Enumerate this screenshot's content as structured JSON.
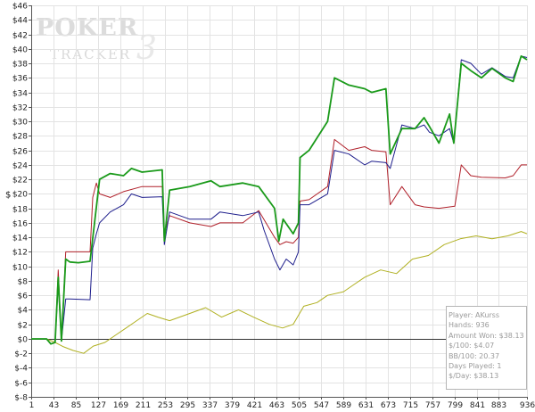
{
  "chart_data": {
    "type": "line",
    "title": "",
    "xlabel": "",
    "ylabel": "$",
    "xlim": [
      1,
      936
    ],
    "ylim": [
      -8,
      46
    ],
    "x_ticks": [
      1,
      43,
      85,
      127,
      169,
      211,
      253,
      295,
      337,
      379,
      421,
      463,
      505,
      547,
      589,
      631,
      673,
      715,
      757,
      799,
      841,
      883,
      936
    ],
    "y_ticks": [
      -8,
      -6,
      -4,
      -2,
      0,
      2,
      4,
      6,
      8,
      10,
      12,
      14,
      16,
      18,
      20,
      22,
      24,
      26,
      28,
      30,
      32,
      34,
      36,
      38,
      40,
      42,
      44,
      46
    ],
    "y_tick_labels": [
      "$-8",
      "$-6",
      "$-4",
      "$-2",
      "$0",
      "$2",
      "$4",
      "$6",
      "$8",
      "$10",
      "$12",
      "$14",
      "$16",
      "$18",
      "$20",
      "$22",
      "$24",
      "$26",
      "$28",
      "$30",
      "$32",
      "$34",
      "$36",
      "$38",
      "$40",
      "$42",
      "$44",
      "$46"
    ],
    "grid": true,
    "series": [
      {
        "name": "",
        "color": "#1a9a1a",
        "points": [
          [
            1,
            0
          ],
          [
            30,
            0
          ],
          [
            38,
            -0.7
          ],
          [
            46,
            -0.5
          ],
          [
            52,
            8.5
          ],
          [
            58,
            -0.3
          ],
          [
            66,
            11
          ],
          [
            74,
            10.6
          ],
          [
            90,
            10.5
          ],
          [
            112,
            10.7
          ],
          [
            130,
            22
          ],
          [
            150,
            22.8
          ],
          [
            175,
            22.5
          ],
          [
            190,
            23.5
          ],
          [
            210,
            23
          ],
          [
            248,
            23.3
          ],
          [
            252,
            13.5
          ],
          [
            262,
            20.5
          ],
          [
            300,
            21
          ],
          [
            340,
            21.8
          ],
          [
            357,
            21
          ],
          [
            400,
            21.5
          ],
          [
            430,
            21
          ],
          [
            460,
            18
          ],
          [
            468,
            13.5
          ],
          [
            476,
            16.5
          ],
          [
            495,
            14.5
          ],
          [
            505,
            16
          ],
          [
            508,
            25
          ],
          [
            525,
            26
          ],
          [
            560,
            30
          ],
          [
            573,
            36
          ],
          [
            600,
            35
          ],
          [
            630,
            34.5
          ],
          [
            643,
            34
          ],
          [
            670,
            34.5
          ],
          [
            678,
            25.5
          ],
          [
            700,
            29
          ],
          [
            725,
            29
          ],
          [
            742,
            30.5
          ],
          [
            752,
            29.3
          ],
          [
            770,
            27
          ],
          [
            790,
            31
          ],
          [
            798,
            27
          ],
          [
            812,
            38
          ],
          [
            830,
            37
          ],
          [
            850,
            36
          ],
          [
            870,
            37.3
          ],
          [
            895,
            36
          ],
          [
            910,
            35.5
          ],
          [
            925,
            39
          ],
          [
            936,
            38.5
          ]
        ]
      },
      {
        "name": "",
        "color": "#1e1e8c",
        "points": [
          [
            1,
            0
          ],
          [
            30,
            0
          ],
          [
            38,
            -0.7
          ],
          [
            46,
            -0.5
          ],
          [
            52,
            7.5
          ],
          [
            58,
            -0.3
          ],
          [
            66,
            5.5
          ],
          [
            74,
            5.5
          ],
          [
            112,
            5.4
          ],
          [
            117,
            12.5
          ],
          [
            124,
            14.5
          ],
          [
            130,
            16
          ],
          [
            150,
            17.5
          ],
          [
            175,
            18.5
          ],
          [
            190,
            20
          ],
          [
            210,
            19.5
          ],
          [
            248,
            19.6
          ],
          [
            252,
            13
          ],
          [
            262,
            17.5
          ],
          [
            300,
            16.5
          ],
          [
            340,
            16.5
          ],
          [
            357,
            17.5
          ],
          [
            400,
            17
          ],
          [
            430,
            17.5
          ],
          [
            440,
            15
          ],
          [
            460,
            11
          ],
          [
            470,
            9.5
          ],
          [
            482,
            11
          ],
          [
            495,
            10.2
          ],
          [
            505,
            12
          ],
          [
            508,
            18.5
          ],
          [
            525,
            18.5
          ],
          [
            560,
            20
          ],
          [
            573,
            26
          ],
          [
            600,
            25.5
          ],
          [
            630,
            24
          ],
          [
            643,
            24.5
          ],
          [
            670,
            24.3
          ],
          [
            678,
            23.5
          ],
          [
            700,
            29.5
          ],
          [
            725,
            29
          ],
          [
            742,
            29.5
          ],
          [
            752,
            28.5
          ],
          [
            770,
            28
          ],
          [
            790,
            29
          ],
          [
            798,
            27
          ],
          [
            812,
            38.5
          ],
          [
            830,
            38
          ],
          [
            850,
            36.5
          ],
          [
            870,
            37.4
          ],
          [
            895,
            36.2
          ],
          [
            910,
            36
          ],
          [
            925,
            39
          ],
          [
            936,
            38.8
          ]
        ]
      },
      {
        "name": "",
        "color": "#b0202a",
        "points": [
          [
            1,
            0
          ],
          [
            30,
            0
          ],
          [
            38,
            -0.7
          ],
          [
            46,
            -0.5
          ],
          [
            52,
            9.5
          ],
          [
            58,
            -0.3
          ],
          [
            66,
            12
          ],
          [
            112,
            12
          ],
          [
            117,
            19.5
          ],
          [
            124,
            21.5
          ],
          [
            130,
            20
          ],
          [
            150,
            19.5
          ],
          [
            175,
            20.3
          ],
          [
            210,
            21
          ],
          [
            248,
            21
          ],
          [
            252,
            14.5
          ],
          [
            262,
            17
          ],
          [
            300,
            16
          ],
          [
            340,
            15.5
          ],
          [
            357,
            16
          ],
          [
            400,
            16
          ],
          [
            430,
            17.7
          ],
          [
            460,
            14
          ],
          [
            470,
            13
          ],
          [
            482,
            13.4
          ],
          [
            495,
            13.2
          ],
          [
            505,
            14
          ],
          [
            508,
            19
          ],
          [
            525,
            19.2
          ],
          [
            560,
            21
          ],
          [
            573,
            27.5
          ],
          [
            600,
            26
          ],
          [
            630,
            26.5
          ],
          [
            643,
            26
          ],
          [
            670,
            25.8
          ],
          [
            678,
            18.5
          ],
          [
            700,
            21
          ],
          [
            725,
            18.5
          ],
          [
            742,
            18.2
          ],
          [
            770,
            18
          ],
          [
            800,
            18.3
          ],
          [
            812,
            24
          ],
          [
            830,
            22.5
          ],
          [
            850,
            22.3
          ],
          [
            895,
            22.2
          ],
          [
            910,
            22.5
          ],
          [
            925,
            24
          ],
          [
            936,
            24
          ]
        ]
      },
      {
        "name": "",
        "color": "#b0b020",
        "points": [
          [
            1,
            0
          ],
          [
            30,
            0
          ],
          [
            46,
            -0.5
          ],
          [
            62,
            -1.1
          ],
          [
            80,
            -1.6
          ],
          [
            100,
            -2
          ],
          [
            118,
            -1
          ],
          [
            140,
            -0.5
          ],
          [
            160,
            0.5
          ],
          [
            180,
            1.5
          ],
          [
            200,
            2.5
          ],
          [
            220,
            3.5
          ],
          [
            240,
            3
          ],
          [
            262,
            2.5
          ],
          [
            300,
            3.5
          ],
          [
            330,
            4.3
          ],
          [
            360,
            3
          ],
          [
            392,
            4
          ],
          [
            420,
            3
          ],
          [
            450,
            2
          ],
          [
            475,
            1.5
          ],
          [
            495,
            2
          ],
          [
            515,
            4.5
          ],
          [
            540,
            5
          ],
          [
            560,
            6
          ],
          [
            590,
            6.5
          ],
          [
            610,
            7.5
          ],
          [
            630,
            8.5
          ],
          [
            660,
            9.5
          ],
          [
            690,
            9
          ],
          [
            720,
            11
          ],
          [
            750,
            11.5
          ],
          [
            780,
            13
          ],
          [
            810,
            13.8
          ],
          [
            840,
            14.2
          ],
          [
            870,
            13.8
          ],
          [
            900,
            14.2
          ],
          [
            925,
            14.8
          ],
          [
            936,
            14.5
          ]
        ]
      }
    ]
  },
  "watermark": {
    "brand_top": "POKER",
    "brand_bottom": "TRACKER",
    "version": "3"
  },
  "stats": {
    "lines": [
      "Player: AKurss",
      "Hands: 936",
      "Amount Won: $38.13",
      "$/100: $4.07",
      "BB/100: 20.37",
      "Days Played: 1",
      "$/Day: $38.13"
    ]
  }
}
